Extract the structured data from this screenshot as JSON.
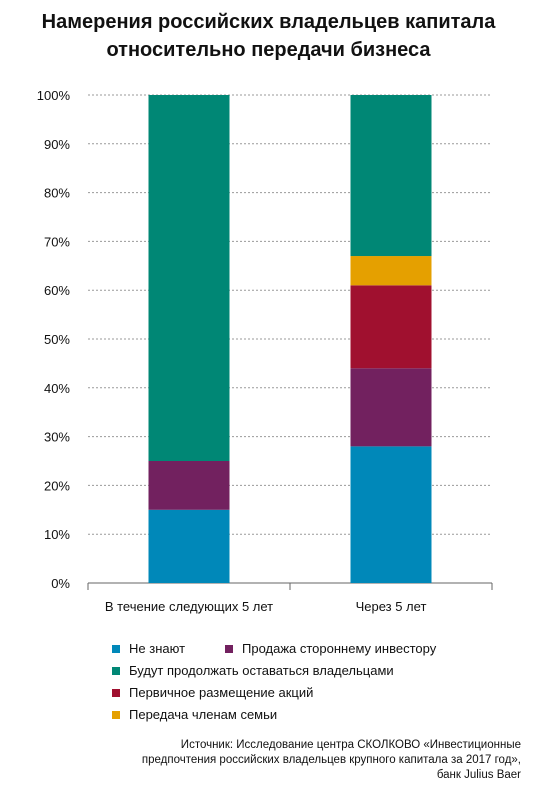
{
  "title_lines": [
    "Намерения российских владельцев капитала",
    "относительно передачи бизнеса"
  ],
  "colors": {
    "dont_know": "#0088b9",
    "sale": "#72215f",
    "continue": "#008775",
    "ipo": "#a0102f",
    "family": "#e5a000"
  },
  "legend": [
    {
      "key": "dont_know",
      "label": "Не знают"
    },
    {
      "key": "sale",
      "label": "Продажа стороннему инвестору"
    },
    {
      "key": "continue",
      "label": "Будут продолжать оставаться владельцами"
    },
    {
      "key": "ipo",
      "label": "Первичное размещение акций"
    },
    {
      "key": "family",
      "label": "Передача членам семьи"
    }
  ],
  "source_lines": [
    "Источник: Исследование центра СКОЛКОВО «Инвестиционные",
    "предпочтения российских владельцев крупного капитала за 2017 год»,",
    "банк Julius Baer"
  ],
  "chart_data": {
    "type": "bar",
    "stacked": true,
    "categories": [
      "В течение следующих 5 лет",
      "Через 5 лет"
    ],
    "series": [
      {
        "name": "Не знают",
        "key": "dont_know",
        "values": [
          15,
          28
        ]
      },
      {
        "name": "Продажа стороннему инвестору",
        "key": "sale",
        "values": [
          10,
          16
        ]
      },
      {
        "name": "Первичное размещение акций",
        "key": "ipo",
        "values": [
          0,
          17
        ]
      },
      {
        "name": "Передача членам семьи",
        "key": "family",
        "values": [
          0,
          6
        ]
      },
      {
        "name": "Будут продолжать оставаться владельцами",
        "key": "continue",
        "values": [
          75,
          33
        ]
      }
    ],
    "y_ticks": [
      "0%",
      "10%",
      "20%",
      "30%",
      "40%",
      "50%",
      "60%",
      "70%",
      "80%",
      "90%",
      "100%"
    ],
    "ylim": [
      0,
      100
    ],
    "grid": true,
    "legend_position": "bottom"
  }
}
